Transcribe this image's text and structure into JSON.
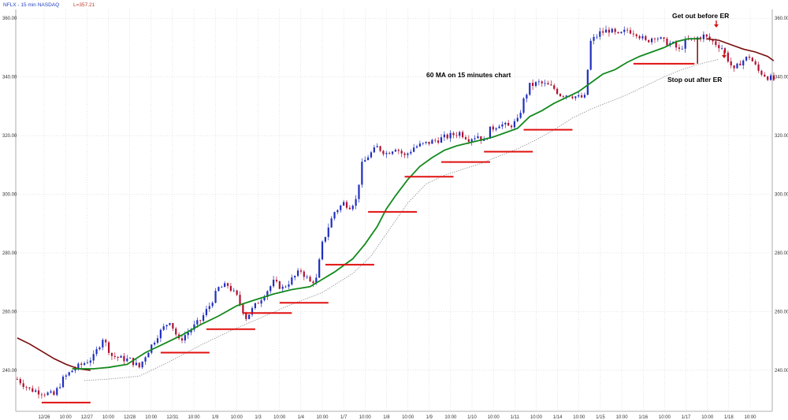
{
  "header": {
    "symbol_label": "NFLX - 15 min  NASDAQ",
    "last_label": "L=357.21",
    "symbol_color": "#1f3fbf",
    "last_color": "#c0392b"
  },
  "annotations": {
    "ma_label": "60 MA on 15 minutes chart",
    "get_out_label": "Get out before ER",
    "stop_out_label": "Stop out after ER"
  },
  "colors": {
    "up_candle": "#1f2fbf",
    "down_candle": "#b01030",
    "ma60": "#138a1e",
    "ma_prior": "#7a0c0c",
    "slow_ma": "#888888",
    "support": "#e01010",
    "arrow": "#d01010",
    "grid": "#c8c8c8"
  },
  "chart_data": {
    "type": "candlestick",
    "title": "",
    "ylim": [
      226,
      363
    ],
    "y_ticks": [
      "240.00",
      "260.00",
      "280.00",
      "300.00",
      "320.00",
      "340.00",
      "360.00"
    ],
    "x_labels": [
      "12/26",
      "10:00",
      "12/27",
      "10:00",
      "12/28",
      "10:00",
      "12/31",
      "10:00",
      "1/9",
      "10:00",
      "1/3",
      "10:00",
      "1/4",
      "10:00",
      "1/7",
      "10:00",
      "1/8",
      "10:00",
      "1/9",
      "10:00",
      "1/10",
      "10:00",
      "1/11",
      "10:00",
      "1/14",
      "10:00",
      "1/15",
      "10:00",
      "1/16",
      "10:00",
      "1/17",
      "10:00",
      "1/18",
      "10:00"
    ],
    "price_path": [
      [
        0,
        237
      ],
      [
        4,
        233.5
      ],
      [
        8,
        232.5
      ],
      [
        12,
        231.5
      ],
      [
        15,
        237
      ],
      [
        18,
        240
      ],
      [
        22,
        242.5
      ],
      [
        25,
        244.5
      ],
      [
        28,
        251
      ],
      [
        31,
        245
      ],
      [
        34,
        244
      ],
      [
        37,
        243.5
      ],
      [
        40,
        241
      ],
      [
        42,
        245
      ],
      [
        46,
        252
      ],
      [
        50,
        257
      ],
      [
        53,
        250
      ],
      [
        56,
        253
      ],
      [
        60,
        257
      ],
      [
        63,
        262
      ],
      [
        66,
        268
      ],
      [
        69,
        269
      ],
      [
        72,
        265
      ],
      [
        75,
        258
      ],
      [
        78,
        262
      ],
      [
        81,
        266
      ],
      [
        84,
        270
      ],
      [
        87,
        268
      ],
      [
        90,
        271
      ],
      [
        93,
        274
      ],
      [
        96,
        270
      ],
      [
        98,
        271
      ],
      [
        100,
        283
      ],
      [
        102,
        289
      ],
      [
        104,
        294
      ],
      [
        107,
        297
      ],
      [
        109,
        296
      ],
      [
        111,
        298
      ],
      [
        113,
        310
      ],
      [
        115,
        313
      ],
      [
        118,
        316
      ],
      [
        121,
        314
      ],
      [
        124,
        316
      ],
      [
        127,
        313
      ],
      [
        130,
        316
      ],
      [
        133,
        317
      ],
      [
        136,
        318
      ],
      [
        139,
        319
      ],
      [
        142,
        320
      ],
      [
        145,
        321
      ],
      [
        148,
        319
      ],
      [
        151,
        320
      ],
      [
        153,
        318
      ],
      [
        155,
        322
      ],
      [
        158,
        324
      ],
      [
        161,
        323
      ],
      [
        164,
        325
      ],
      [
        166,
        332
      ],
      [
        168,
        337
      ],
      [
        171,
        338
      ],
      [
        174,
        337
      ],
      [
        176,
        336
      ],
      [
        178,
        334
      ],
      [
        181,
        334
      ],
      [
        184,
        333
      ],
      [
        186,
        333
      ],
      [
        188,
        352
      ],
      [
        191,
        355
      ],
      [
        194,
        356
      ],
      [
        197,
        354
      ],
      [
        200,
        356
      ],
      [
        203,
        355
      ],
      [
        206,
        352
      ],
      [
        209,
        354
      ],
      [
        212,
        352
      ],
      [
        215,
        351
      ],
      [
        217,
        349
      ],
      [
        219,
        352
      ],
      [
        222,
        353
      ],
      [
        225,
        354
      ],
      [
        228,
        352
      ],
      [
        231,
        350
      ],
      [
        233,
        346
      ],
      [
        235,
        342
      ],
      [
        237,
        345
      ],
      [
        240,
        347
      ],
      [
        243,
        342
      ],
      [
        246,
        340
      ],
      [
        248,
        339
      ]
    ],
    "ma60_path": [
      [
        18,
        240.5
      ],
      [
        25,
        240.5
      ],
      [
        30,
        241
      ],
      [
        36,
        242
      ],
      [
        42,
        246
      ],
      [
        48,
        249
      ],
      [
        54,
        252
      ],
      [
        60,
        255.5
      ],
      [
        66,
        258.5
      ],
      [
        72,
        262
      ],
      [
        78,
        264
      ],
      [
        84,
        266
      ],
      [
        90,
        267.5
      ],
      [
        96,
        268.5
      ],
      [
        100,
        271
      ],
      [
        104,
        273.5
      ],
      [
        110,
        278
      ],
      [
        114,
        283
      ],
      [
        118,
        289
      ],
      [
        121,
        295
      ],
      [
        124,
        299.5
      ],
      [
        128,
        305
      ],
      [
        132,
        309.5
      ],
      [
        136,
        312.5
      ],
      [
        140,
        315
      ],
      [
        144,
        316.5
      ],
      [
        148,
        317.5
      ],
      [
        152,
        318.5
      ],
      [
        156,
        319.5
      ],
      [
        160,
        321
      ],
      [
        164,
        322.5
      ],
      [
        168,
        326.5
      ],
      [
        172,
        328.5
      ],
      [
        176,
        331
      ],
      [
        180,
        333
      ],
      [
        184,
        335
      ],
      [
        188,
        338
      ],
      [
        192,
        341
      ],
      [
        196,
        342.5
      ],
      [
        200,
        345
      ],
      [
        204,
        347
      ],
      [
        208,
        348.5
      ],
      [
        212,
        350
      ],
      [
        216,
        352
      ],
      [
        220,
        353
      ],
      [
        224,
        353
      ]
    ],
    "ma_prior_path": [
      [
        0,
        251
      ],
      [
        4,
        249
      ],
      [
        8,
        246.5
      ],
      [
        12,
        244
      ],
      [
        16,
        242
      ],
      [
        20,
        240.5
      ],
      [
        24,
        240
      ],
      [
        226,
        353
      ],
      [
        230,
        352.5
      ],
      [
        234,
        351
      ],
      [
        238,
        349.5
      ],
      [
        242,
        348.5
      ],
      [
        246,
        347
      ],
      [
        248,
        345.5
      ]
    ],
    "slow_ma_path": [
      [
        22,
        236.5
      ],
      [
        30,
        237
      ],
      [
        40,
        238
      ],
      [
        50,
        243
      ],
      [
        60,
        248.5
      ],
      [
        70,
        253.5
      ],
      [
        80,
        258
      ],
      [
        90,
        262.5
      ],
      [
        100,
        266.5
      ],
      [
        110,
        273
      ],
      [
        116,
        279
      ],
      [
        122,
        288
      ],
      [
        128,
        297
      ],
      [
        134,
        303.5
      ],
      [
        140,
        306.5
      ],
      [
        146,
        308.5
      ],
      [
        152,
        310.5
      ],
      [
        158,
        313
      ],
      [
        164,
        315.5
      ],
      [
        170,
        318.5
      ],
      [
        176,
        322
      ],
      [
        182,
        326
      ],
      [
        188,
        329
      ],
      [
        194,
        331.5
      ],
      [
        200,
        334
      ],
      [
        206,
        337
      ],
      [
        212,
        340
      ],
      [
        218,
        342.5
      ],
      [
        224,
        344.5
      ],
      [
        230,
        346
      ]
    ],
    "support_levels": [
      {
        "x1": 8,
        "x2": 24,
        "y": 229
      },
      {
        "x1": 47,
        "x2": 63,
        "y": 246
      },
      {
        "x1": 62,
        "x2": 78,
        "y": 254
      },
      {
        "x1": 74,
        "x2": 90,
        "y": 259.5
      },
      {
        "x1": 86,
        "x2": 102,
        "y": 263
      },
      {
        "x1": 101,
        "x2": 117,
        "y": 276
      },
      {
        "x1": 115,
        "x2": 131,
        "y": 294
      },
      {
        "x1": 127,
        "x2": 143,
        "y": 306
      },
      {
        "x1": 139,
        "x2": 155,
        "y": 311
      },
      {
        "x1": 153,
        "x2": 169,
        "y": 314.5
      },
      {
        "x1": 166,
        "x2": 182,
        "y": 322
      },
      {
        "x1": 202,
        "x2": 222,
        "y": 344.5
      }
    ],
    "earnings_drop": {
      "x": 223,
      "from": 353,
      "to": 344.5
    }
  }
}
